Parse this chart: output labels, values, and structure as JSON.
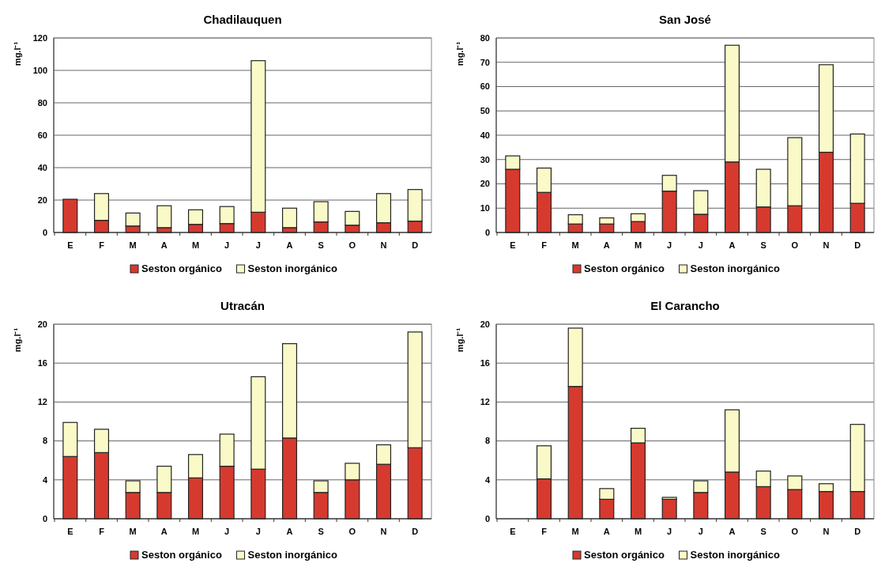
{
  "chart_data": [
    {
      "type": "bar",
      "title": "Chadilauquen",
      "ylabel": "mg.l⁻¹",
      "stacked": true,
      "categories": [
        "E",
        "F",
        "M",
        "A",
        "M",
        "J",
        "J",
        "A",
        "S",
        "O",
        "N",
        "D"
      ],
      "ylim": [
        0,
        120
      ],
      "yticks": [
        0,
        20,
        40,
        60,
        80,
        100,
        120
      ],
      "grid": "y",
      "legend": "bottom",
      "series": [
        {
          "name": "Seston orgánico",
          "color": "#d63a2f",
          "values": [
            20.5,
            7.5,
            4,
            3,
            5,
            5.5,
            12.5,
            3,
            6.5,
            4.5,
            6,
            7
          ]
        },
        {
          "name": "Seston inorgánico",
          "color": "#fafac8",
          "values": [
            0,
            16.5,
            8,
            13.5,
            9,
            10.5,
            93.5,
            12,
            12.5,
            8.5,
            18,
            19.5
          ]
        }
      ]
    },
    {
      "type": "bar",
      "title": "San José",
      "ylabel": "mg.l⁻¹",
      "stacked": true,
      "categories": [
        "E",
        "F",
        "M",
        "A",
        "M",
        "J",
        "J",
        "A",
        "S",
        "O",
        "N",
        "D"
      ],
      "ylim": [
        0,
        80
      ],
      "yticks": [
        0,
        10,
        20,
        30,
        40,
        50,
        60,
        70,
        80
      ],
      "grid": "y",
      "legend": "bottom",
      "series": [
        {
          "name": "Seston orgánico",
          "color": "#d63a2f",
          "values": [
            26,
            16.5,
            3.5,
            3.5,
            4.5,
            17,
            7.5,
            29,
            10.5,
            11,
            33,
            12
          ]
        },
        {
          "name": "Seston inorgánico",
          "color": "#fafac8",
          "values": [
            5.5,
            10,
            3.8,
            2.5,
            3.2,
            6.5,
            9.7,
            48,
            15.5,
            28,
            36,
            28.5
          ]
        }
      ]
    },
    {
      "type": "bar",
      "title": "Utracán",
      "ylabel": "mg.l⁻¹",
      "stacked": true,
      "categories": [
        "E",
        "F",
        "M",
        "A",
        "M",
        "J",
        "J",
        "A",
        "S",
        "O",
        "N",
        "D"
      ],
      "ylim": [
        0,
        20
      ],
      "yticks": [
        0,
        4,
        8,
        12,
        16,
        20
      ],
      "grid": "y",
      "legend": "bottom",
      "series": [
        {
          "name": "Seston orgánico",
          "color": "#d63a2f",
          "values": [
            6.4,
            6.8,
            2.7,
            2.7,
            4.2,
            5.4,
            5.1,
            8.3,
            2.7,
            4,
            5.6,
            7.3
          ]
        },
        {
          "name": "Seston inorgánico",
          "color": "#fafac8",
          "values": [
            3.5,
            2.4,
            1.2,
            2.7,
            2.4,
            3.3,
            9.5,
            9.7,
            1.2,
            1.7,
            2,
            11.9
          ]
        }
      ]
    },
    {
      "type": "bar",
      "title": "El Carancho",
      "ylabel": "mg.l⁻¹",
      "stacked": true,
      "categories": [
        "E",
        "F",
        "M",
        "A",
        "M",
        "J",
        "J",
        "A",
        "S",
        "O",
        "N",
        "D"
      ],
      "ylim": [
        0,
        20
      ],
      "yticks": [
        0,
        4,
        8,
        12,
        16,
        20
      ],
      "grid": "y",
      "legend": "bottom",
      "series": [
        {
          "name": "Seston orgánico",
          "color": "#d63a2f",
          "values": [
            null,
            4.1,
            13.6,
            2,
            7.8,
            2,
            2.7,
            4.8,
            3.3,
            3,
            2.8,
            2.8
          ]
        },
        {
          "name": "Seston inorgánico",
          "color": "#fafac8",
          "values": [
            null,
            3.4,
            6,
            1.1,
            1.5,
            0.2,
            1.2,
            6.4,
            1.6,
            1.4,
            0.8,
            6.9
          ]
        }
      ]
    }
  ]
}
